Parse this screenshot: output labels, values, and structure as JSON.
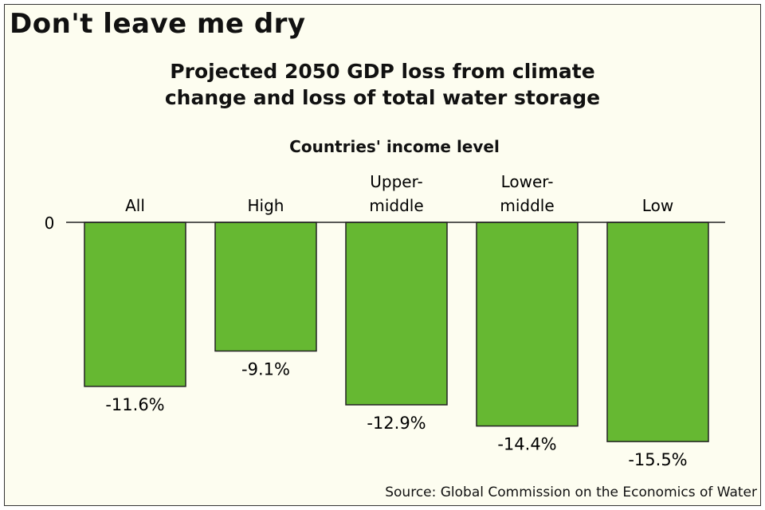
{
  "headline": "Don't leave me dry",
  "source": "Source: Global Commission on the Economics of Water",
  "colors": {
    "bar": "#66b832",
    "background": "#fdfdf0",
    "outline": "#222222"
  },
  "chart_data": {
    "type": "bar",
    "title": "Projected 2050 GDP loss from climate change and loss of total water storage",
    "title_lines": [
      "Projected 2050 GDP loss from climate",
      "change and loss of total water storage"
    ],
    "group_label": "Countries' income level",
    "categories": [
      "All",
      "High",
      "Upper-middle",
      "Lower-middle",
      "Low"
    ],
    "category_lines": [
      [
        "All"
      ],
      [
        "High"
      ],
      [
        "Upper-",
        "middle"
      ],
      [
        "Lower-",
        "middle"
      ],
      [
        "Low"
      ]
    ],
    "values": [
      -11.6,
      -9.1,
      -12.9,
      -14.4,
      -15.5
    ],
    "data_labels": [
      "-11.6%",
      "-9.1%",
      "-12.9%",
      "-14.4%",
      "-15.5%"
    ],
    "y_tick_labels": [
      "0"
    ],
    "ylim": [
      -16,
      0
    ],
    "grid": false,
    "legend": "none"
  }
}
